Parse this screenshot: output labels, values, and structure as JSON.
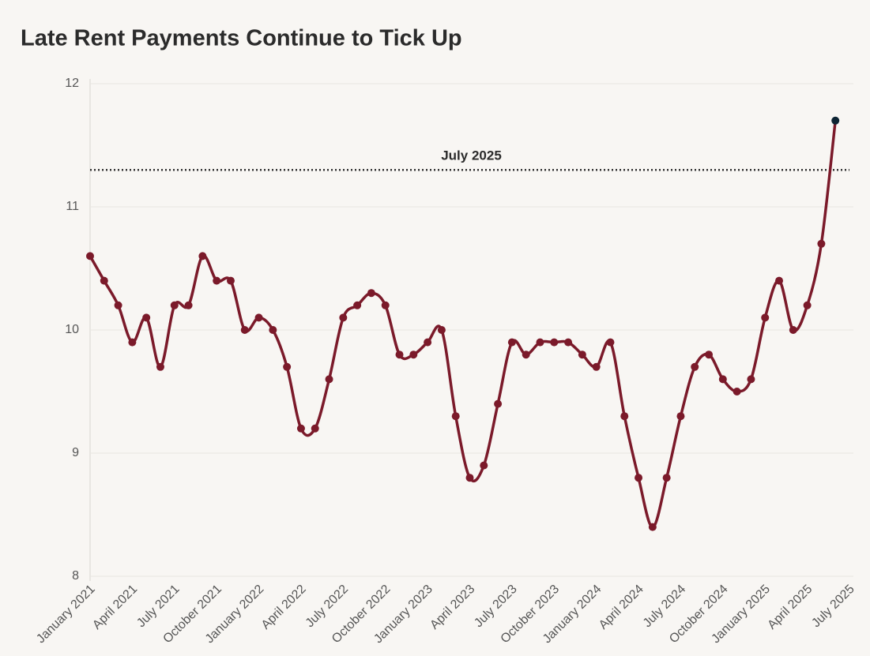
{
  "chart_data": {
    "type": "line",
    "title": "Late Rent Payments Continue to Tick Up",
    "categories": [
      "January 2021",
      null,
      null,
      "April 2021",
      null,
      null,
      "July 2021",
      null,
      null,
      "October 2021",
      null,
      null,
      "January 2022",
      null,
      null,
      "April 2022",
      null,
      null,
      "July 2022",
      null,
      null,
      "October 2022",
      null,
      null,
      "January 2023",
      null,
      null,
      "April 2023",
      null,
      null,
      "July 2023",
      null,
      null,
      "October 2023",
      null,
      null,
      "January 2024",
      null,
      null,
      "April 2024",
      null,
      null,
      "July 2024",
      null,
      null,
      "October 2024",
      null,
      null,
      "January 2025",
      null,
      null,
      "April 2025",
      null,
      null,
      "July 2025"
    ],
    "series": [
      {
        "color": "#7b1a2a",
        "highlight_color": "#0d2433",
        "values": [
          10.6,
          10.4,
          10.2,
          9.9,
          10.1,
          9.7,
          10.2,
          10.2,
          10.6,
          10.4,
          10.4,
          10.0,
          10.1,
          10.0,
          9.7,
          9.2,
          9.2,
          9.6,
          10.1,
          10.2,
          10.3,
          10.2,
          9.8,
          9.8,
          9.9,
          10.0,
          9.3,
          8.8,
          8.9,
          9.4,
          9.9,
          9.8,
          9.9,
          9.9,
          9.9,
          9.8,
          9.7,
          9.9,
          9.3,
          8.8,
          8.4,
          8.8,
          9.3,
          9.7,
          9.8,
          9.6,
          9.5,
          9.6,
          10.1,
          10.4,
          10.0,
          10.2,
          10.7,
          11.7,
          null
        ]
      }
    ],
    "annotations": [
      {
        "text": "July 2025",
        "value": 11.3
      }
    ],
    "ylim": [
      8,
      12
    ],
    "yticks": [
      8,
      9,
      10,
      11,
      12
    ],
    "grid": true
  }
}
